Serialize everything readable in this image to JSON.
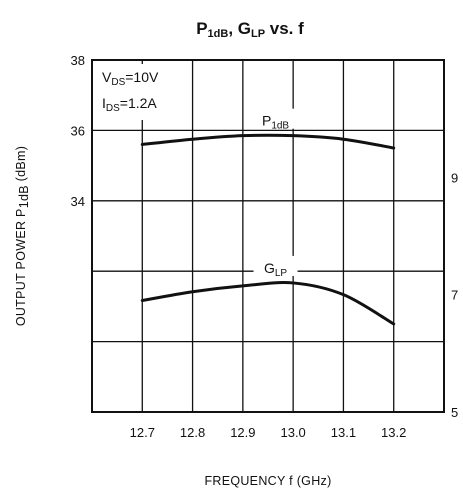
{
  "chart_data": {
    "type": "line",
    "title": {
      "main": "P",
      "main_sub": "1dB",
      "sep": ", G",
      "sep_sub": "LP",
      "end": " vs. f"
    },
    "xlabel": "FREQUENCY  f  (GHz)",
    "ylabel_left": {
      "main": "OUTPUT POWER  P",
      "sub": "1dB",
      "end": "  (dBm)"
    },
    "x_ticks": [
      "12.7",
      "12.8",
      "12.9",
      "13.0",
      "13.1",
      "13.2"
    ],
    "y_left_ticks": [
      "38",
      "36",
      "34"
    ],
    "y_right_ticks": [
      "9",
      "7",
      "5"
    ],
    "xlim": [
      12.6,
      13.3
    ],
    "ylim_left": [
      28,
      38
    ],
    "ylim_right": [
      5,
      11
    ],
    "conditions": [
      {
        "main": "V",
        "sub": "DS",
        "end": "=10V"
      },
      {
        "main": "I",
        "sub": "DS",
        "end": "=1.2A"
      }
    ],
    "series": [
      {
        "name": {
          "main": "P",
          "sub": "1dB"
        },
        "axis": "left",
        "x": [
          12.7,
          12.8,
          12.9,
          13.0,
          13.1,
          13.2
        ],
        "y": [
          35.6,
          35.75,
          35.85,
          35.85,
          35.75,
          35.5
        ]
      },
      {
        "name": {
          "main": "G",
          "sub": "LP"
        },
        "axis": "right",
        "x": [
          12.7,
          12.8,
          12.9,
          13.0,
          13.1,
          13.2
        ],
        "y": [
          6.9,
          7.05,
          7.15,
          7.2,
          7.0,
          6.5
        ]
      }
    ],
    "grid": true
  }
}
